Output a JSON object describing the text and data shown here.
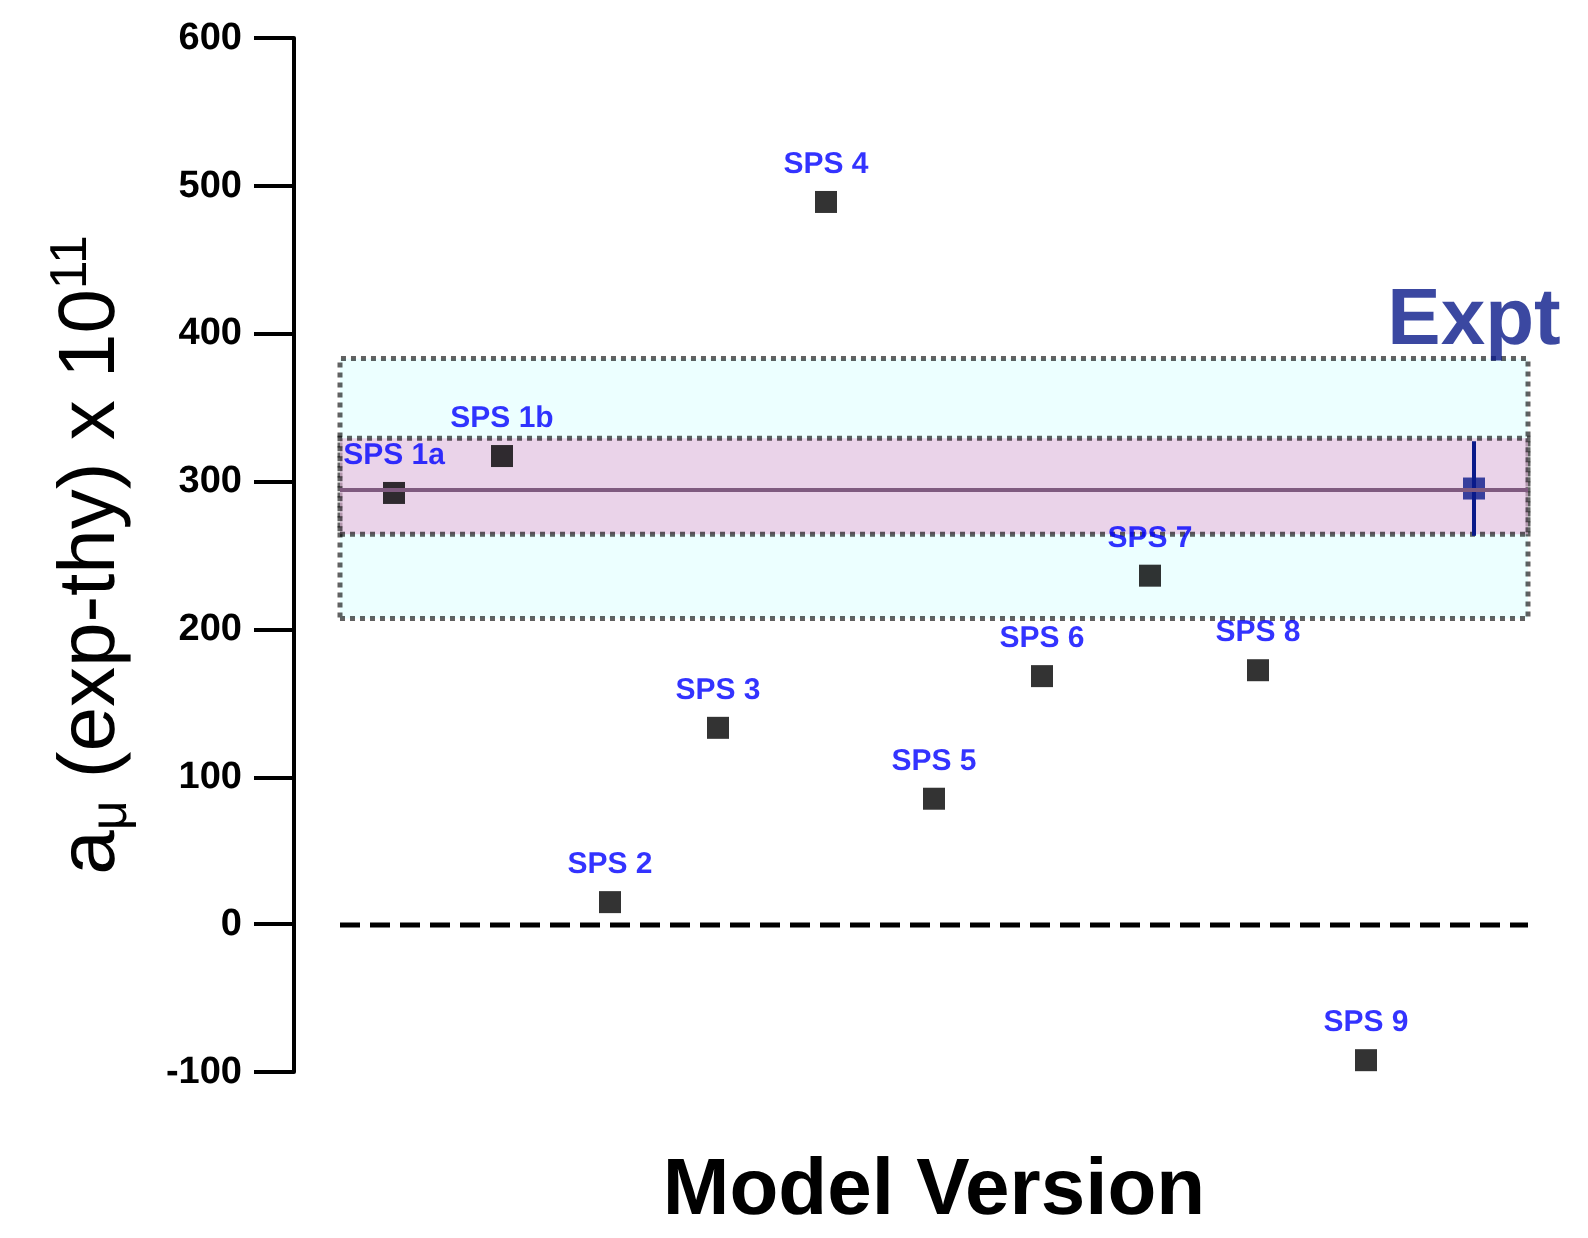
{
  "chart_data": {
    "type": "scatter",
    "xlabel": "Model Version",
    "ylabel": "a$_{μ}$ (exp-thy) x 10$^{11}$",
    "categories": [
      null,
      null,
      null,
      null,
      null,
      null,
      null,
      null,
      null,
      null,
      null
    ],
    "series": [
      {
        "name": "SPS 1a",
        "color": "#000000",
        "values": [
          292,
          null,
          null,
          null,
          null,
          null,
          null,
          null,
          null,
          null,
          null
        ]
      },
      {
        "name": "SPS 1b",
        "color": "#000000",
        "values": [
          null,
          317,
          null,
          null,
          null,
          null,
          null,
          null,
          null,
          null,
          null
        ]
      },
      {
        "name": "SPS 2",
        "color": "#000000",
        "values": [
          null,
          null,
          15,
          null,
          null,
          null,
          null,
          null,
          null,
          null,
          null
        ]
      },
      {
        "name": "SPS 3",
        "color": "#000000",
        "values": [
          null,
          null,
          null,
          133,
          null,
          null,
          null,
          null,
          null,
          null,
          null
        ]
      },
      {
        "name": "SPS 4",
        "color": "#000000",
        "values": [
          null,
          null,
          null,
          null,
          489,
          null,
          null,
          null,
          null,
          null,
          null
        ]
      },
      {
        "name": "SPS 5",
        "color": "#000000",
        "values": [
          null,
          null,
          null,
          null,
          null,
          85,
          null,
          null,
          null,
          null,
          null
        ]
      },
      {
        "name": "SPS 6",
        "color": "#000000",
        "values": [
          null,
          null,
          null,
          null,
          null,
          null,
          168,
          null,
          null,
          null,
          null
        ]
      },
      {
        "name": "SPS 7",
        "color": "#000000",
        "values": [
          null,
          null,
          null,
          null,
          null,
          null,
          null,
          236,
          null,
          null,
          null
        ]
      },
      {
        "name": "SPS 8",
        "color": "#000000",
        "values": [
          null,
          null,
          null,
          null,
          null,
          null,
          null,
          null,
          172,
          null,
          null
        ]
      },
      {
        "name": "SPS 9",
        "color": "#000000",
        "values": [
          null,
          null,
          null,
          null,
          null,
          null,
          null,
          null,
          null,
          -92,
          null
        ]
      },
      {
        "name": "Expt",
        "color": "#0a1a8a",
        "values": [
          null,
          null,
          null,
          null,
          null,
          null,
          null,
          null,
          null,
          null,
          295
        ],
        "errors": [
          null,
          null,
          null,
          null,
          null,
          null,
          null,
          null,
          null,
          null,
          32
        ]
      }
    ],
    "ylim": [
      -100,
      600
    ],
    "yticks": [
      -100,
      0,
      100,
      200,
      300,
      400,
      500,
      600
    ],
    "tick_labels": "y",
    "marker": "square",
    "ref_lines": [
      {
        "axis": "y",
        "value": 0,
        "line_style": "dashed",
        "color": "#000000"
      },
      {
        "axis": "y",
        "value": 295,
        "color": "#7f5a7f"
      }
    ],
    "bands": [
      {
        "axis": "y",
        "from": 207,
        "to": 383,
        "color": "#e0ffff"
      },
      {
        "axis": "y",
        "from": 264,
        "to": 329,
        "color": "#e8b8dc"
      }
    ]
  }
}
